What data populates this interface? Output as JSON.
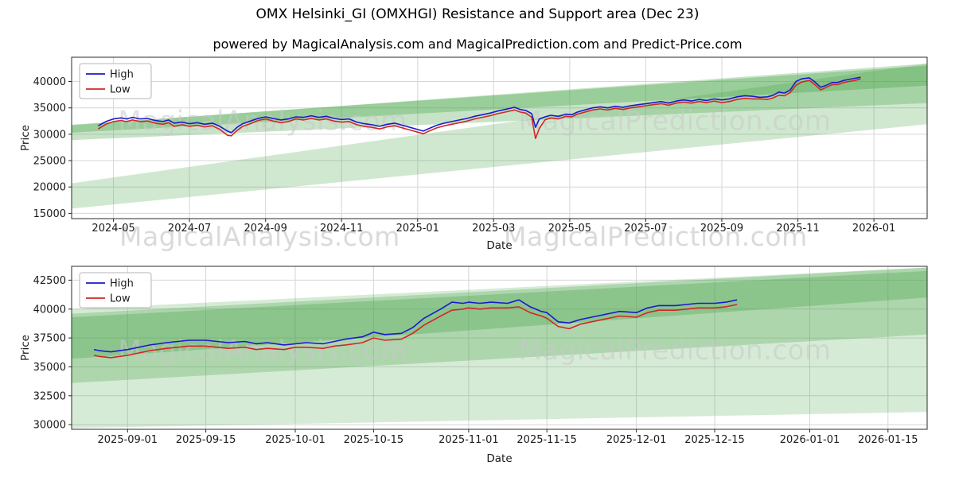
{
  "title": "OMX Helsinki_GI (OMXHGI) Resistance and Support area (Dec 23)",
  "subtitle": "powered by MagicalAnalysis.com and MagicalPrediction.com and Predict-Price.com",
  "watermark": {
    "left": "MagicalAnalysis.com",
    "right": "MagicalPrediction.com"
  },
  "colors": {
    "high": "#1a1acd",
    "low": "#d42626",
    "band": "#44a344",
    "grid": "#d6d6d6",
    "spine": "#2b2b2b",
    "tick_text": "#1a1a1a",
    "watermark": "#c9c9c9"
  },
  "chart_data": [
    {
      "type": "line",
      "title": "",
      "xlabel": "Date",
      "ylabel": "Price",
      "x_unit": "months since 2024-01-01",
      "xlim": [
        2.9,
        25.4
      ],
      "ylim": [
        14000,
        44600
      ],
      "grid": true,
      "legend_position": "top-left",
      "x_ticks": [
        {
          "pos": 4,
          "label": "2024-05"
        },
        {
          "pos": 6,
          "label": "2024-07"
        },
        {
          "pos": 8,
          "label": "2024-09"
        },
        {
          "pos": 10,
          "label": "2024-11"
        },
        {
          "pos": 12,
          "label": "2025-01"
        },
        {
          "pos": 14,
          "label": "2025-03"
        },
        {
          "pos": 16,
          "label": "2025-05"
        },
        {
          "pos": 18,
          "label": "2025-07"
        },
        {
          "pos": 20,
          "label": "2025-09"
        },
        {
          "pos": 22,
          "label": "2025-11"
        },
        {
          "pos": 24,
          "label": "2026-01"
        }
      ],
      "y_ticks": [
        15000,
        20000,
        25000,
        30000,
        35000,
        40000
      ],
      "x": [
        3.6,
        3.8,
        4.0,
        4.2,
        4.35,
        4.5,
        4.7,
        4.9,
        5.1,
        5.3,
        5.45,
        5.6,
        5.8,
        6.0,
        6.2,
        6.4,
        6.6,
        6.8,
        7.0,
        7.1,
        7.25,
        7.4,
        7.6,
        7.8,
        8.0,
        8.2,
        8.4,
        8.6,
        8.8,
        9.0,
        9.2,
        9.4,
        9.6,
        9.8,
        10.0,
        10.2,
        10.4,
        10.6,
        10.8,
        11.0,
        11.2,
        11.4,
        11.6,
        11.8,
        12.0,
        12.15,
        12.3,
        12.5,
        12.7,
        12.9,
        13.1,
        13.3,
        13.5,
        13.7,
        13.9,
        14.1,
        14.3,
        14.55,
        14.7,
        14.85,
        15.0,
        15.1,
        15.2,
        15.35,
        15.5,
        15.7,
        15.9,
        16.05,
        16.2,
        16.4,
        16.6,
        16.8,
        17.0,
        17.2,
        17.4,
        17.6,
        17.8,
        18.0,
        18.2,
        18.4,
        18.6,
        18.8,
        19.0,
        19.2,
        19.4,
        19.6,
        19.8,
        20.0,
        20.2,
        20.4,
        20.6,
        20.8,
        21.0,
        21.2,
        21.35,
        21.5,
        21.65,
        21.8,
        21.95,
        22.1,
        22.3,
        22.45,
        22.6,
        22.75,
        22.9,
        23.05,
        23.2,
        23.35,
        23.5,
        23.65
      ],
      "series": [
        {
          "name": "High",
          "color_key": "high",
          "values": [
            31600,
            32400,
            32900,
            33100,
            32900,
            33200,
            32900,
            33000,
            32600,
            32400,
            32700,
            32100,
            32300,
            32000,
            32200,
            31900,
            32100,
            31500,
            30600,
            30300,
            31300,
            32000,
            32500,
            33000,
            33300,
            33000,
            32700,
            32900,
            33300,
            33200,
            33500,
            33200,
            33400,
            33000,
            32800,
            32900,
            32300,
            32000,
            31800,
            31500,
            31900,
            32100,
            31700,
            31300,
            30900,
            30600,
            31100,
            31700,
            32100,
            32400,
            32700,
            33000,
            33400,
            33700,
            34000,
            34400,
            34700,
            35100,
            34700,
            34500,
            33900,
            31300,
            32900,
            33300,
            33600,
            33400,
            33800,
            33700,
            34200,
            34600,
            35000,
            35200,
            35000,
            35300,
            35100,
            35400,
            35600,
            35800,
            36000,
            36200,
            35900,
            36300,
            36500,
            36300,
            36600,
            36400,
            36700,
            36500,
            36700,
            37100,
            37300,
            37200,
            37000,
            37100,
            37400,
            38000,
            37800,
            38400,
            40000,
            40500,
            40700,
            39900,
            38900,
            39300,
            39800,
            39800,
            40200,
            40400,
            40600,
            40800
          ]
        },
        {
          "name": "Low",
          "color_key": "low",
          "values": [
            31000,
            31900,
            32400,
            32600,
            32400,
            32700,
            32400,
            32500,
            32100,
            31900,
            32200,
            31500,
            31800,
            31500,
            31700,
            31400,
            31600,
            30900,
            29800,
            29700,
            30700,
            31500,
            32000,
            32600,
            32900,
            32500,
            32200,
            32400,
            32900,
            32700,
            33000,
            32700,
            32900,
            32500,
            32300,
            32400,
            31800,
            31500,
            31300,
            31000,
            31400,
            31600,
            31200,
            30800,
            30400,
            30100,
            30600,
            31200,
            31600,
            31900,
            32200,
            32500,
            32900,
            33200,
            33500,
            33900,
            34200,
            34600,
            34200,
            34000,
            33200,
            29200,
            31100,
            32700,
            33100,
            32900,
            33400,
            33300,
            33800,
            34200,
            34600,
            34800,
            34600,
            34900,
            34700,
            35000,
            35200,
            35400,
            35600,
            35800,
            35500,
            35900,
            36100,
            35900,
            36200,
            36000,
            36300,
            36000,
            36200,
            36600,
            36800,
            36700,
            36700,
            36600,
            36900,
            37400,
            37300,
            37900,
            39300,
            39900,
            40200,
            39400,
            38400,
            38900,
            39400,
            39400,
            39800,
            40000,
            40200,
            40500
          ]
        }
      ],
      "bands": [
        {
          "x": [
            2.9,
            25.4
          ],
          "bottom": [
            15900,
            31900
          ],
          "top": [
            20700,
            43400
          ],
          "opacity": 0.25
        },
        {
          "x": [
            2.9,
            25.4
          ],
          "bottom": [
            28900,
            35900
          ],
          "top": [
            31700,
            43400
          ],
          "opacity": 0.3
        },
        {
          "x": [
            2.9,
            25.4
          ],
          "bottom": [
            30300,
            39200
          ],
          "top": [
            31800,
            43000
          ],
          "opacity": 0.35
        }
      ]
    },
    {
      "type": "line",
      "title": "",
      "xlabel": "Date",
      "ylabel": "Price",
      "x_unit": "days since 2025-08-25",
      "xlim": [
        -3,
        150
      ],
      "ylim": [
        29600,
        43700
      ],
      "grid": true,
      "legend_position": "top-left",
      "x_ticks": [
        {
          "pos": 7,
          "label": "2025-09-01"
        },
        {
          "pos": 21,
          "label": "2025-09-15"
        },
        {
          "pos": 37,
          "label": "2025-10-01"
        },
        {
          "pos": 51,
          "label": "2025-10-15"
        },
        {
          "pos": 68,
          "label": "2025-11-01"
        },
        {
          "pos": 82,
          "label": "2025-11-15"
        },
        {
          "pos": 98,
          "label": "2025-12-01"
        },
        {
          "pos": 112,
          "label": "2025-12-15"
        },
        {
          "pos": 129,
          "label": "2026-01-01"
        },
        {
          "pos": 143,
          "label": "2026-01-15"
        }
      ],
      "y_ticks": [
        30000,
        32500,
        35000,
        37500,
        40000,
        42500
      ],
      "x": [
        1,
        2,
        4,
        7,
        9,
        11,
        14,
        16,
        18,
        21,
        23,
        25,
        28,
        30,
        32,
        35,
        37,
        39,
        42,
        44,
        46,
        49,
        51,
        53,
        56,
        58,
        60,
        63,
        65,
        67,
        68,
        70,
        72,
        75,
        77,
        79,
        81,
        82,
        84,
        86,
        88,
        91,
        93,
        95,
        98,
        100,
        102,
        105,
        107,
        109,
        112,
        114,
        116
      ],
      "series": [
        {
          "name": "High",
          "color_key": "high",
          "values": [
            36500,
            36400,
            36300,
            36500,
            36700,
            36900,
            37100,
            37200,
            37300,
            37300,
            37200,
            37100,
            37200,
            37000,
            37100,
            36900,
            37000,
            37100,
            37000,
            37200,
            37400,
            37600,
            38000,
            37800,
            37900,
            38400,
            39200,
            40000,
            40600,
            40500,
            40600,
            40500,
            40600,
            40500,
            40800,
            40200,
            39800,
            39700,
            38900,
            38800,
            39100,
            39400,
            39600,
            39800,
            39700,
            40100,
            40300,
            40300,
            40400,
            40500,
            40500,
            40600,
            40800
          ]
        },
        {
          "name": "Low",
          "color_key": "low",
          "values": [
            36000,
            35900,
            35800,
            36000,
            36200,
            36400,
            36600,
            36700,
            36800,
            36800,
            36700,
            36600,
            36700,
            36500,
            36600,
            36500,
            36700,
            36700,
            36600,
            36800,
            36900,
            37100,
            37500,
            37300,
            37400,
            37900,
            38600,
            39400,
            39900,
            40000,
            40100,
            40000,
            40100,
            40100,
            40200,
            39700,
            39400,
            39200,
            38500,
            38300,
            38700,
            39000,
            39200,
            39400,
            39300,
            39700,
            39900,
            39900,
            40000,
            40100,
            40100,
            40200,
            40400
          ]
        }
      ],
      "bands": [
        {
          "x": [
            -3,
            150
          ],
          "bottom": [
            29700,
            31100
          ],
          "top": [
            40000,
            43600
          ],
          "opacity": 0.22
        },
        {
          "x": [
            -3,
            150
          ],
          "bottom": [
            33600,
            37800
          ],
          "top": [
            39600,
            43600
          ],
          "opacity": 0.28
        },
        {
          "x": [
            -3,
            150
          ],
          "bottom": [
            35700,
            41000
          ],
          "top": [
            39300,
            43300
          ],
          "opacity": 0.32
        }
      ]
    }
  ]
}
